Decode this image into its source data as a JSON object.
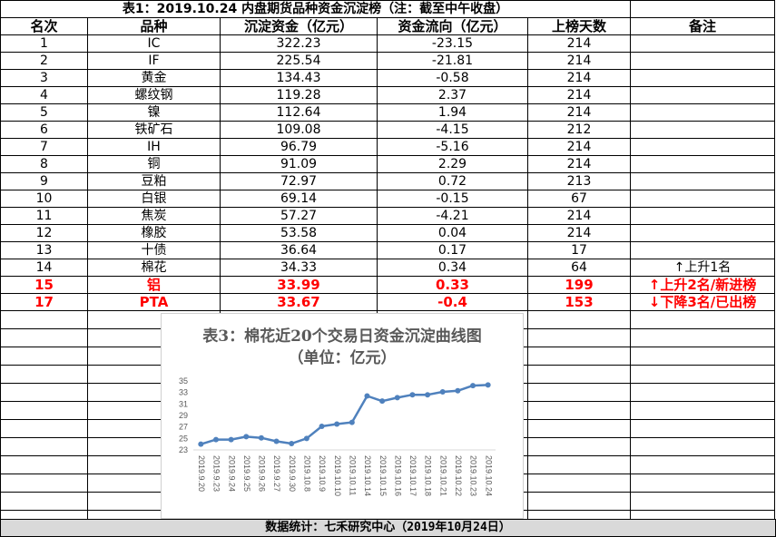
{
  "table": {
    "title": "表1：2019.10.24 内盘期货品种资金沉淀榜（注：截至中午收盘）",
    "headers": [
      "名次",
      "品种",
      "沉淀资金（亿元）",
      "资金流向（亿元）",
      "上榜天数",
      "备注"
    ],
    "rows": [
      {
        "rank": "1",
        "name": "IC",
        "amount": "322.23",
        "flow": "-23.15",
        "days": "214",
        "note": ""
      },
      {
        "rank": "2",
        "name": "IF",
        "amount": "225.54",
        "flow": "-21.81",
        "days": "214",
        "note": ""
      },
      {
        "rank": "3",
        "name": "黄金",
        "amount": "134.43",
        "flow": "-0.58",
        "days": "214",
        "note": ""
      },
      {
        "rank": "4",
        "name": "螺纹钢",
        "amount": "119.28",
        "flow": "2.37",
        "days": "214",
        "note": ""
      },
      {
        "rank": "5",
        "name": "镍",
        "amount": "112.64",
        "flow": "1.94",
        "days": "214",
        "note": ""
      },
      {
        "rank": "6",
        "name": "铁矿石",
        "amount": "109.08",
        "flow": "-4.15",
        "days": "212",
        "note": ""
      },
      {
        "rank": "7",
        "name": "IH",
        "amount": "96.79",
        "flow": "-5.16",
        "days": "214",
        "note": ""
      },
      {
        "rank": "8",
        "name": "铜",
        "amount": "91.09",
        "flow": "2.29",
        "days": "214",
        "note": ""
      },
      {
        "rank": "9",
        "name": "豆粕",
        "amount": "72.97",
        "flow": "0.72",
        "days": "213",
        "note": ""
      },
      {
        "rank": "10",
        "name": "白银",
        "amount": "69.14",
        "flow": "-0.15",
        "days": "67",
        "note": ""
      },
      {
        "rank": "11",
        "name": "焦炭",
        "amount": "57.27",
        "flow": "-4.21",
        "days": "214",
        "note": ""
      },
      {
        "rank": "12",
        "name": "橡胶",
        "amount": "53.58",
        "flow": "0.04",
        "days": "214",
        "note": ""
      },
      {
        "rank": "13",
        "name": "十债",
        "amount": "36.64",
        "flow": "0.17",
        "days": "17",
        "note": ""
      },
      {
        "rank": "14",
        "name": "棉花",
        "amount": "34.33",
        "flow": "0.34",
        "days": "64",
        "note": "↑上升1名"
      },
      {
        "rank": "15",
        "name": "铝",
        "amount": "33.99",
        "flow": "0.33",
        "days": "199",
        "note": "↑上升2名/新进榜"
      },
      {
        "rank": "17",
        "name": "PTA",
        "amount": "33.67",
        "flow": "-0.4",
        "days": "153",
        "note": "↓下降3名/已出榜"
      }
    ],
    "highlight_color": "#ff0000"
  },
  "footer": "数据统计：七禾研究中心（2019年10月24日）",
  "chart_data": {
    "type": "line",
    "title": "表3：棉花近20个交易日资金沉淀曲线图",
    "subtitle": "（单位：亿元）",
    "x": [
      "2019.9.20",
      "2019.9.23",
      "2019.9.24",
      "2019.9.25",
      "2019.9.26",
      "2019.9.27",
      "2019.9.30",
      "2019.10.8",
      "2019.10.9",
      "2019.10.10",
      "2019.10.11",
      "2019.10.14",
      "2019.10.15",
      "2019.10.16",
      "2019.10.17",
      "2019.10.18",
      "2019.10.21",
      "2019.10.22",
      "2019.10.23",
      "2019.10.24"
    ],
    "values": [
      24.0,
      24.8,
      24.8,
      25.3,
      25.1,
      24.5,
      24.1,
      25.0,
      27.1,
      27.5,
      27.8,
      32.4,
      31.5,
      32.1,
      32.6,
      32.6,
      33.1,
      33.3,
      34.2,
      34.3
    ],
    "ylim": [
      23,
      35
    ],
    "yticks": [
      23,
      25,
      27,
      29,
      31,
      33,
      35
    ],
    "line_color": "#4f81bd",
    "grid": false
  }
}
